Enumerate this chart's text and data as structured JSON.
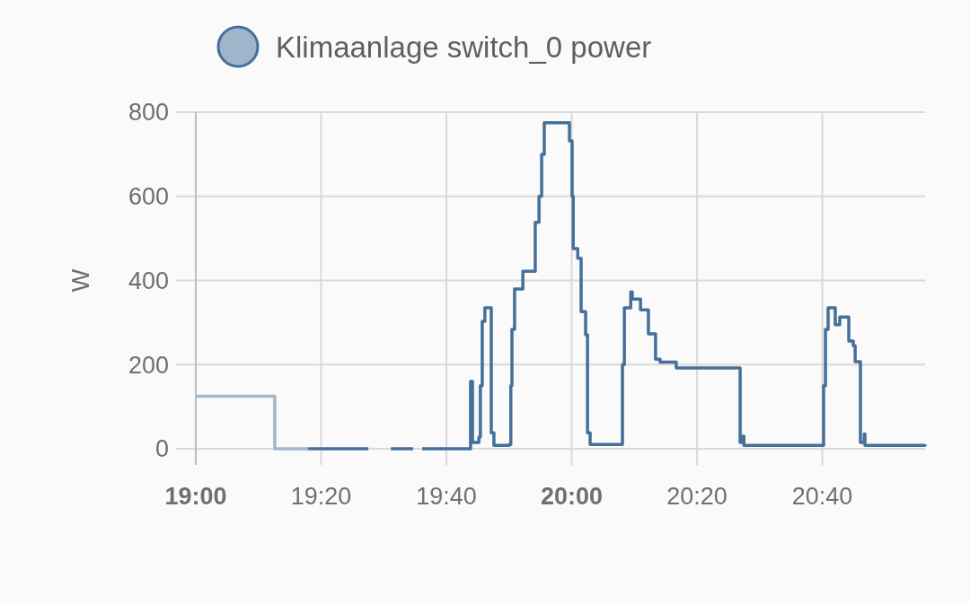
{
  "chart_data": {
    "type": "step",
    "ylabel": "W",
    "xlim": [
      19,
      20.94
    ],
    "ylim": [
      0,
      800
    ],
    "xticks": [
      {
        "value": 19,
        "label": "19:00"
      },
      {
        "value": 19.3333,
        "label": "19:20"
      },
      {
        "value": 19.6667,
        "label": "19:40"
      },
      {
        "value": 20,
        "label": "20:00"
      },
      {
        "value": 20.3333,
        "label": "20:20"
      },
      {
        "value": 20.6667,
        "label": "20:40"
      }
    ],
    "yticks": [
      0,
      200,
      400,
      600,
      800
    ],
    "grid": true,
    "legend": "top",
    "marker": "none",
    "line_style": "solid",
    "series": [
      {
        "color": "#a3b5cb",
        "x": [
          19,
          19.21,
          19.299
        ],
        "values": [
          125,
          0,
          0
        ]
      },
      {
        "name": "Klimaanlage switch_0 power",
        "color": "#44709a",
        "x": [
          19.299,
          19.459,
          19.49,
          19.519,
          19.578,
          19.59,
          19.602,
          19.731,
          19.736,
          19.753,
          19.757,
          19.762,
          19.769,
          19.786,
          19.793,
          19.834,
          19.838,
          19.841,
          19.848,
          19.87,
          19.903,
          19.913,
          19.92,
          19.927,
          19.994,
          20.001,
          20.004,
          20.016,
          20.025,
          20.037,
          20.042,
          20.049,
          20.135,
          20.14,
          20.157,
          20.161,
          20.183,
          20.204,
          20.223,
          20.235,
          20.278,
          20.448,
          20.455,
          20.458,
          20.67,
          20.675,
          20.682,
          20.701,
          20.713,
          20.737,
          20.749,
          20.754,
          20.768,
          20.778,
          20.78,
          20.94
        ],
        "values": [
          0,
          0,
          null,
          0,
          0,
          null,
          0,
          160,
          15,
          28,
          150,
          303,
          335,
          38,
          8,
          10,
          150,
          284,
          380,
          422,
          538,
          600,
          700,
          775,
          732,
          600,
          476,
          453,
          326,
          271,
          38,
          10,
          200,
          335,
          373,
          356,
          330,
          273,
          213,
          206,
          192,
          15,
          30,
          8,
          150,
          284,
          335,
          295,
          313,
          256,
          245,
          207,
          15,
          35,
          8,
          10
        ]
      }
    ]
  }
}
